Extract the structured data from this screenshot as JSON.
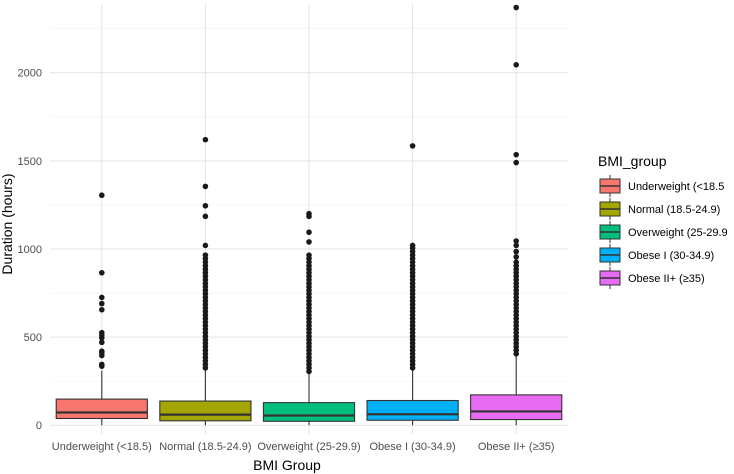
{
  "chart_data": {
    "type": "boxplot",
    "title": "",
    "xlabel": "BMI Group",
    "ylabel": "Duration (hours)",
    "ylim": [
      -50,
      2390
    ],
    "yticks": [
      0,
      500,
      1000,
      1500,
      2000
    ],
    "ytick_labels": [
      "0",
      "500",
      "1000",
      "1500",
      "2000"
    ],
    "grid": true,
    "legend_title": "BMI_group",
    "legend_position": "right",
    "categories": [
      "Underweight (<18.5)",
      "Normal (18.5-24.9)",
      "Overweight (25-29.9)",
      "Obese I (30-34.9)",
      "Obese II+ (≥35)"
    ],
    "legend_labels": [
      "Underweight (<18.5",
      "Normal (18.5-24.9)",
      "Overweight (25-29.9",
      "Obese I (30-34.9)",
      "Obese II+ (≥35)"
    ],
    "colors": [
      "#F8766D",
      "#A3A500",
      "#00BF7D",
      "#00B0F6",
      "#E76BF3"
    ],
    "boxes": [
      {
        "q1": 38,
        "median": 72,
        "q3": 148,
        "whisker_low": 0,
        "whisker_high": 310,
        "outliers": [
          1305,
          865,
          725,
          690,
          655,
          525,
          510,
          495,
          470,
          420,
          410,
          395,
          345,
          335
        ]
      },
      {
        "q1": 25,
        "median": 60,
        "q3": 137,
        "whisker_low": 0,
        "whisker_high": 310,
        "outliers": [
          1620,
          1355,
          1245,
          1185,
          1020,
          965,
          945,
          925,
          905,
          885,
          865,
          845,
          825,
          805,
          785,
          765,
          745,
          725,
          705,
          685,
          665,
          645,
          625,
          605,
          585,
          565,
          545,
          525,
          505,
          485,
          465,
          445,
          425,
          405,
          385,
          365,
          345,
          325
        ]
      },
      {
        "q1": 22,
        "median": 55,
        "q3": 128,
        "whisker_low": 0,
        "whisker_high": 295,
        "outliers": [
          1200,
          1185,
          1095,
          1040,
          965,
          945,
          925,
          905,
          885,
          865,
          845,
          825,
          805,
          785,
          765,
          745,
          725,
          705,
          685,
          665,
          645,
          625,
          605,
          585,
          565,
          545,
          525,
          505,
          485,
          465,
          445,
          425,
          405,
          385,
          365,
          345,
          325,
          305
        ]
      },
      {
        "q1": 28,
        "median": 62,
        "q3": 140,
        "whisker_low": 0,
        "whisker_high": 310,
        "outliers": [
          1585,
          1020,
          1005,
          985,
          965,
          945,
          925,
          905,
          885,
          865,
          845,
          825,
          805,
          785,
          765,
          745,
          725,
          705,
          685,
          665,
          645,
          625,
          605,
          585,
          565,
          545,
          525,
          505,
          485,
          465,
          445,
          425,
          405,
          385,
          365,
          345,
          325
        ]
      },
      {
        "q1": 32,
        "median": 78,
        "q3": 172,
        "whisker_low": 0,
        "whisker_high": 390,
        "outliers": [
          2370,
          2045,
          1535,
          1490,
          1045,
          1020,
          985,
          955,
          925,
          905,
          885,
          865,
          845,
          825,
          805,
          785,
          765,
          745,
          725,
          705,
          685,
          665,
          645,
          625,
          605,
          585,
          565,
          545,
          525,
          505,
          485,
          465,
          445,
          425,
          405
        ]
      }
    ]
  }
}
